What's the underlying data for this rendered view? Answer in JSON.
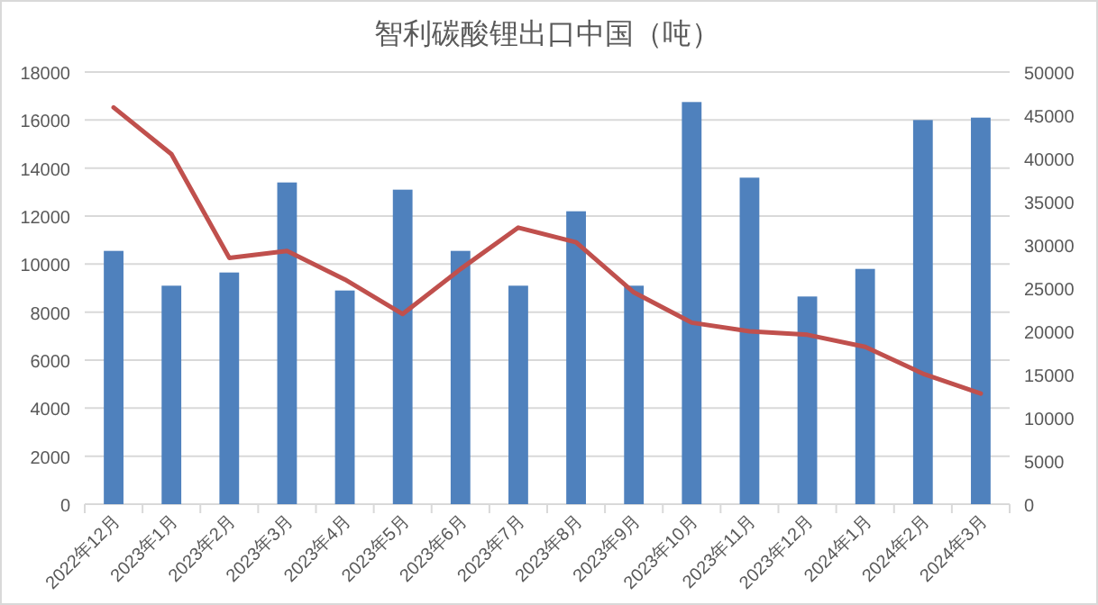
{
  "chart_data": {
    "type": "bar",
    "title": "智利碳酸锂出口中国（吨）",
    "categories": [
      "2022年12月",
      "2023年1月",
      "2023年2月",
      "2023年3月",
      "2023年4月",
      "2023年5月",
      "2023年6月",
      "2023年7月",
      "2023年8月",
      "2023年9月",
      "2023年10月",
      "2023年11月",
      "2023年12月",
      "2024年1月",
      "2024年2月",
      "2024年3月"
    ],
    "series": [
      {
        "color": "#4f81bd",
        "values": [
          10550,
          9100,
          9650,
          13400,
          8900,
          13100,
          10550,
          9100,
          12200,
          9100,
          16750,
          13600,
          8650,
          9800,
          16000,
          16100
        ]
      },
      {
        "type": "line",
        "axis": "y2",
        "color": "#c0504d",
        "values": [
          45900,
          40500,
          28500,
          29300,
          26000,
          22000,
          27200,
          32000,
          30300,
          24500,
          21000,
          20000,
          19600,
          18200,
          15100,
          12800
        ]
      }
    ],
    "ylim": [
      0,
      18000
    ],
    "yticks": [
      0,
      2000,
      4000,
      6000,
      8000,
      10000,
      12000,
      14000,
      16000,
      18000
    ],
    "y2lim": [
      0,
      50000
    ],
    "y2ticks": [
      0,
      5000,
      10000,
      15000,
      20000,
      25000,
      30000,
      35000,
      40000,
      45000,
      50000
    ],
    "grid": "y"
  }
}
